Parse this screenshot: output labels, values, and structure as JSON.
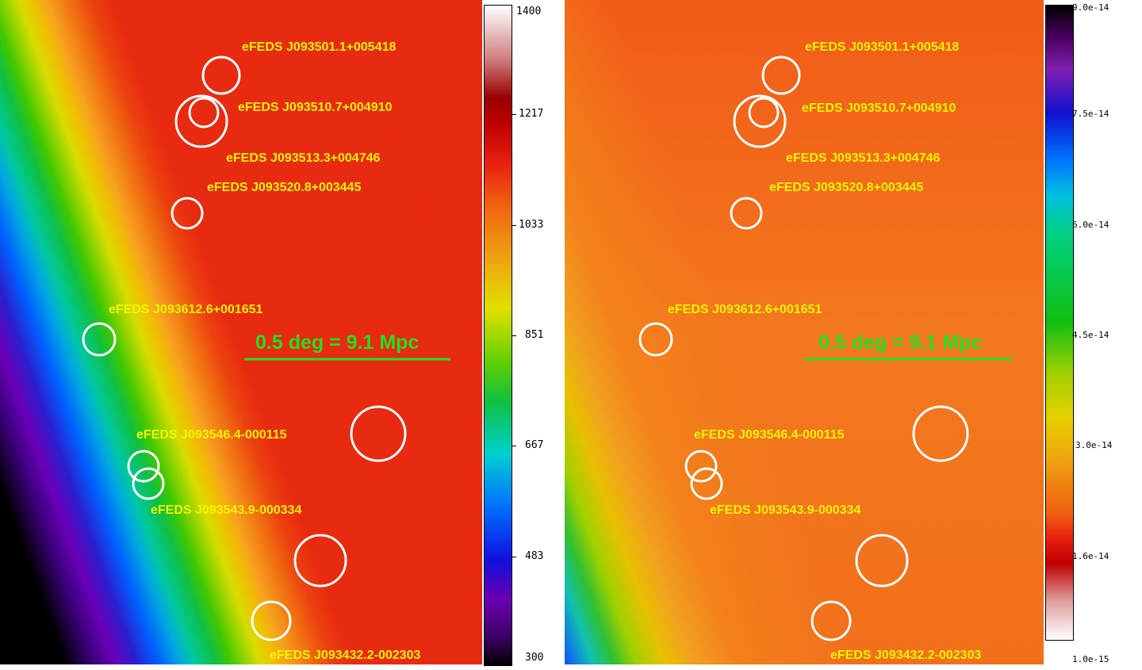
{
  "left_panel": {
    "sources": [
      {
        "label": "eFEDS J093501.1+005418"
      },
      {
        "label": "eFEDS J093510.7+004910"
      },
      {
        "label": "eFEDS J093513.3+004746"
      },
      {
        "label": "eFEDS J093520.8+003445"
      },
      {
        "label": "eFEDS J093612.6+001651"
      },
      {
        "label": "eFEDS J093546.4-000115"
      },
      {
        "label": "eFEDS J093543.9-000334"
      },
      {
        "label": "eFEDS J093432.2-002303"
      }
    ],
    "scale_bar": "0.5 deg = 9.1 Mpc",
    "colorbar_ticks": [
      "1400",
      "1217",
      "1033",
      "851",
      "667",
      "483",
      "300"
    ]
  },
  "right_panel": {
    "sources": [
      {
        "label": "eFEDS J093501.1+005418"
      },
      {
        "label": "eFEDS J093510.7+004910"
      },
      {
        "label": "eFEDS J093513.3+004746"
      },
      {
        "label": "eFEDS J093520.8+003445"
      },
      {
        "label": "eFEDS J093612.6+001651"
      },
      {
        "label": "eFEDS J093546.4-000115"
      },
      {
        "label": "eFEDS J093543.9-000334"
      },
      {
        "label": "eFEDS J093432.2-002303"
      }
    ],
    "scale_bar": "0.5 deg = 9.1 Mpc",
    "colorbar_ticks": [
      "9.0e-14",
      "7.5e-14",
      "6.0e-14",
      "4.5e-14",
      "3.0e-14",
      "1.6e-14",
      "1.0e-15"
    ]
  },
  "colors": {
    "circle": "#ffffff",
    "label": "#f4f400",
    "scale_bar": "#22e022"
  }
}
